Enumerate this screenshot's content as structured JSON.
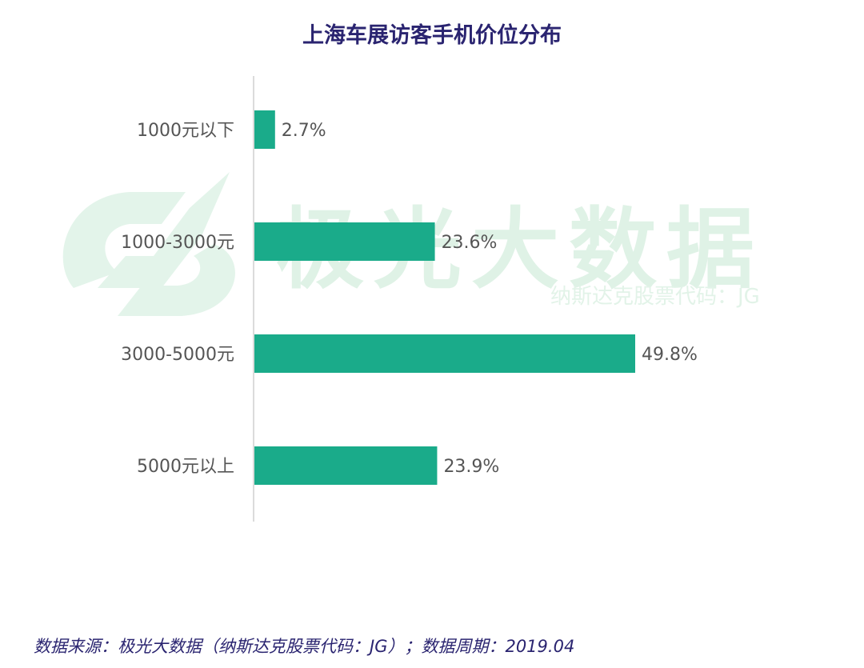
{
  "colors": {
    "bar": "#1aab8a",
    "title": "#2a2470",
    "axis_line": "#cfcfcf",
    "tick_text": "#555555",
    "watermark": "#dff2e6"
  },
  "watermark": {
    "brand": "极光大数据",
    "sub": "纳斯达克股票代码：JG"
  },
  "footer": {
    "source": "数据来源：极光大数据（纳斯达克股票代码：JG）；数据周期：2019.04"
  },
  "chart_data": {
    "type": "bar",
    "orientation": "horizontal",
    "title": "上海车展访客手机价位分布",
    "xlabel": "",
    "ylabel": "",
    "categories": [
      "1000元以下",
      "1000-3000元",
      "3000-5000元",
      "5000元以上"
    ],
    "values": [
      2.7,
      23.6,
      49.8,
      23.9
    ],
    "value_labels": [
      "2.7%",
      "23.6%",
      "49.8%",
      "23.9%"
    ],
    "unit": "%",
    "xlim": [
      0,
      50
    ],
    "grid": false,
    "legend": "none"
  }
}
